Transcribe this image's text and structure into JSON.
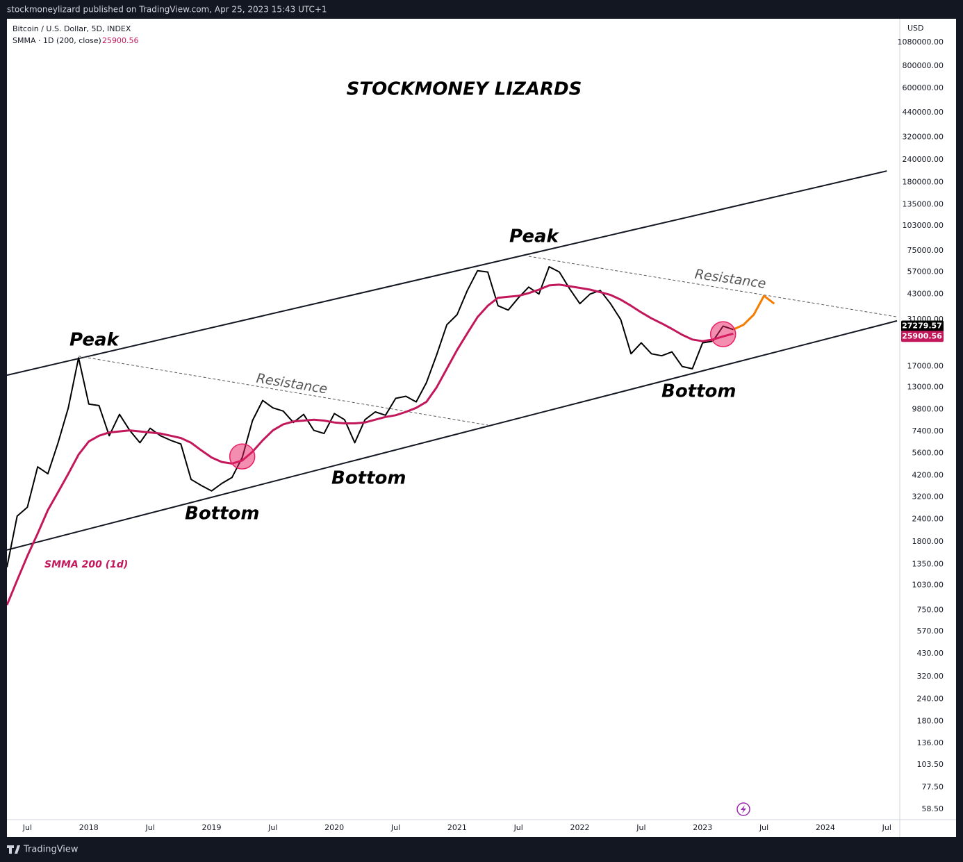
{
  "header": {
    "publisher": "stockmoneylizard published on TradingView.com, Apr 25, 2023 15:43 UTC+1"
  },
  "footer": {
    "brand": "TradingView"
  },
  "chart_data": {
    "type": "line",
    "title": "STOCKMONEY LIZARDS",
    "symbol": "Bitcoin / U.S. Dollar, 5D, INDEX",
    "currency": "USD",
    "log_scale": true,
    "grid": false,
    "xlim": [
      "2017-05",
      "2024-08"
    ],
    "ylim": [
      51.2,
      1462000
    ],
    "xticks": [
      {
        "value": "2017-07",
        "label": "Jul"
      },
      {
        "value": "2018-01",
        "label": "2018"
      },
      {
        "value": "2018-07",
        "label": "Jul"
      },
      {
        "value": "2019-01",
        "label": "2019"
      },
      {
        "value": "2019-07",
        "label": "Jul"
      },
      {
        "value": "2020-01",
        "label": "2020"
      },
      {
        "value": "2020-07",
        "label": "Jul"
      },
      {
        "value": "2021-01",
        "label": "2021"
      },
      {
        "value": "2021-07",
        "label": "Jul"
      },
      {
        "value": "2022-01",
        "label": "2022"
      },
      {
        "value": "2022-07",
        "label": "Jul"
      },
      {
        "value": "2023-01",
        "label": "2023"
      },
      {
        "value": "2023-07",
        "label": "Jul"
      },
      {
        "value": "2024-01",
        "label": "2024"
      },
      {
        "value": "2024-07",
        "label": "Jul"
      }
    ],
    "yticks": [
      {
        "value": 1080000,
        "label": "1080000.00"
      },
      {
        "value": 800000,
        "label": "800000.00"
      },
      {
        "value": 600000,
        "label": "600000.00"
      },
      {
        "value": 440000,
        "label": "440000.00"
      },
      {
        "value": 320000,
        "label": "320000.00"
      },
      {
        "value": 240000,
        "label": "240000.00"
      },
      {
        "value": 180000,
        "label": "180000.00"
      },
      {
        "value": 135000,
        "label": "135000.00"
      },
      {
        "value": 103000,
        "label": "103000.00"
      },
      {
        "value": 75000,
        "label": "75000.00"
      },
      {
        "value": 57000,
        "label": "57000.00"
      },
      {
        "value": 43000,
        "label": "43000.00"
      },
      {
        "value": 31000,
        "label": "31000.00"
      },
      {
        "value": 17000,
        "label": "17000.00"
      },
      {
        "value": 13000,
        "label": "13000.00"
      },
      {
        "value": 9800,
        "label": "9800.00"
      },
      {
        "value": 7400,
        "label": "7400.00"
      },
      {
        "value": 5600,
        "label": "5600.00"
      },
      {
        "value": 4200,
        "label": "4200.00"
      },
      {
        "value": 3200,
        "label": "3200.00"
      },
      {
        "value": 2400,
        "label": "2400.00"
      },
      {
        "value": 1800,
        "label": "1800.00"
      },
      {
        "value": 1350,
        "label": "1350.00"
      },
      {
        "value": 1030,
        "label": "1030.00"
      },
      {
        "value": 750,
        "label": "750.00"
      },
      {
        "value": 570,
        "label": "570.00"
      },
      {
        "value": 430,
        "label": "430.00"
      },
      {
        "value": 320,
        "label": "320.00"
      },
      {
        "value": 240,
        "label": "240.00"
      },
      {
        "value": 180,
        "label": "180.00"
      },
      {
        "value": 136,
        "label": "136.00"
      },
      {
        "value": 103.5,
        "label": "103.50"
      },
      {
        "value": 77.5,
        "label": "77.50"
      },
      {
        "value": 58.5,
        "label": "58.50"
      }
    ],
    "series": [
      {
        "name": "Bitcoin / U.S. Dollar, 5D, INDEX",
        "color": "#000000",
        "x": [
          "2017-05",
          "2017-06",
          "2017-07",
          "2017-08",
          "2017-09",
          "2017-10",
          "2017-11",
          "2017-12",
          "2018-01",
          "2018-02",
          "2018-03",
          "2018-04",
          "2018-05",
          "2018-06",
          "2018-07",
          "2018-08",
          "2018-09",
          "2018-10",
          "2018-11",
          "2018-12",
          "2019-01",
          "2019-02",
          "2019-03",
          "2019-04",
          "2019-05",
          "2019-06",
          "2019-07",
          "2019-08",
          "2019-09",
          "2019-10",
          "2019-11",
          "2019-12",
          "2020-01",
          "2020-02",
          "2020-03",
          "2020-04",
          "2020-05",
          "2020-06",
          "2020-07",
          "2020-08",
          "2020-09",
          "2020-10",
          "2020-11",
          "2020-12",
          "2021-01",
          "2021-02",
          "2021-03",
          "2021-04",
          "2021-05",
          "2021-06",
          "2021-07",
          "2021-08",
          "2021-09",
          "2021-10",
          "2021-11",
          "2021-12",
          "2022-01",
          "2022-02",
          "2022-03",
          "2022-04",
          "2022-05",
          "2022-06",
          "2022-07",
          "2022-08",
          "2022-09",
          "2022-10",
          "2022-11",
          "2022-12",
          "2023-01",
          "2023-02",
          "2023-03",
          "2023-04"
        ],
        "values": [
          1300,
          2500,
          2800,
          4700,
          4300,
          6400,
          10000,
          19000,
          10500,
          10300,
          7000,
          9200,
          7500,
          6400,
          7700,
          7000,
          6600,
          6300,
          4000,
          3700,
          3450,
          3800,
          4100,
          5300,
          8500,
          11000,
          10000,
          9600,
          8300,
          9200,
          7500,
          7200,
          9300,
          8600,
          6400,
          8600,
          9500,
          9100,
          11300,
          11600,
          10800,
          13800,
          19700,
          29000,
          33000,
          45000,
          58000,
          57000,
          37000,
          35000,
          41000,
          47000,
          43000,
          61000,
          57000,
          46000,
          38000,
          43000,
          45000,
          38000,
          31000,
          20000,
          23000,
          20000,
          19500,
          20500,
          17000,
          16500,
          23000,
          23500,
          28500,
          27279.57
        ]
      },
      {
        "name": "SMMA · 1D (200, close)",
        "color": "#c2185b",
        "x": [
          "2017-05",
          "2017-06",
          "2017-07",
          "2017-08",
          "2017-09",
          "2017-10",
          "2017-11",
          "2017-12",
          "2018-01",
          "2018-02",
          "2018-03",
          "2018-04",
          "2018-05",
          "2018-06",
          "2018-07",
          "2018-08",
          "2018-09",
          "2018-10",
          "2018-11",
          "2018-12",
          "2019-01",
          "2019-02",
          "2019-03",
          "2019-04",
          "2019-05",
          "2019-06",
          "2019-07",
          "2019-08",
          "2019-09",
          "2019-10",
          "2019-11",
          "2019-12",
          "2020-01",
          "2020-02",
          "2020-03",
          "2020-04",
          "2020-05",
          "2020-06",
          "2020-07",
          "2020-08",
          "2020-09",
          "2020-10",
          "2020-11",
          "2020-12",
          "2021-01",
          "2021-02",
          "2021-03",
          "2021-04",
          "2021-05",
          "2021-06",
          "2021-07",
          "2021-08",
          "2021-09",
          "2021-10",
          "2021-11",
          "2021-12",
          "2022-01",
          "2022-02",
          "2022-03",
          "2022-04",
          "2022-05",
          "2022-06",
          "2022-07",
          "2022-08",
          "2022-09",
          "2022-10",
          "2022-11",
          "2022-12",
          "2023-01",
          "2023-02",
          "2023-03",
          "2023-04"
        ],
        "values": [
          800,
          1100,
          1500,
          2000,
          2700,
          3400,
          4300,
          5500,
          6500,
          7000,
          7300,
          7400,
          7500,
          7400,
          7300,
          7200,
          7000,
          6800,
          6400,
          5800,
          5300,
          5000,
          4900,
          5100,
          5700,
          6600,
          7500,
          8100,
          8400,
          8500,
          8600,
          8500,
          8300,
          8200,
          8200,
          8300,
          8600,
          8900,
          9100,
          9500,
          10000,
          10800,
          13000,
          16500,
          21000,
          26000,
          32000,
          37000,
          41000,
          41500,
          42000,
          43500,
          45500,
          48000,
          48500,
          47500,
          46500,
          45500,
          44000,
          42500,
          40000,
          37000,
          34000,
          31500,
          29500,
          27500,
          25500,
          24000,
          23500,
          24000,
          25000,
          25900.56
        ]
      },
      {
        "color": "#f57c00",
        "x": [
          "2023-04",
          "2023-05",
          "2023-06",
          "2023-07",
          "2023-08"
        ],
        "values": [
          27300,
          29000,
          33000,
          42000,
          38000
        ]
      }
    ],
    "trendlines": [
      {
        "x": [
          "2017-05",
          "2024-07"
        ],
        "values": [
          15200,
          208000
        ],
        "color": "#131722",
        "dashed": false
      },
      {
        "x": [
          "2017-05",
          "2024-08"
        ],
        "values": [
          1620,
          30500
        ],
        "color": "#131722",
        "dashed": false
      },
      {
        "x": [
          "2017-12",
          "2021-04"
        ],
        "values": [
          19400,
          8020
        ],
        "color": "#555555",
        "dashed": true
      },
      {
        "x": [
          "2021-08",
          "2024-08"
        ],
        "values": [
          69700,
          32100
        ],
        "color": "#555555",
        "dashed": true
      }
    ],
    "highlights": [
      {
        "x": "2019-04",
        "value": 5370,
        "color": "#e91e63"
      },
      {
        "x": "2023-03",
        "value": 25700,
        "color": "#e91e63"
      }
    ],
    "annotations": [
      "Peak",
      "Peak",
      "Bottom",
      "Bottom",
      "Bottom",
      "Resistance",
      "Resistance",
      "SMMA 200 (1d)"
    ]
  }
}
